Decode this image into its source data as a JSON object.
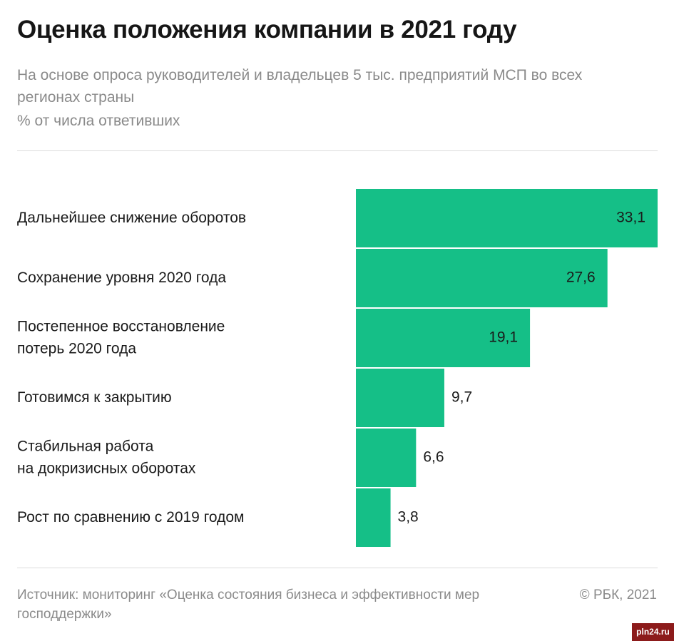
{
  "header": {
    "title": "Оценка положения компании в 2021 году",
    "subtitle": "На основе опроса руководителей и владельцев 5 тыс. предприятий МСП во всех регионах страны",
    "unit": "% от числа ответивших"
  },
  "footer": {
    "source": "Источник: мониторинг «Оценка состояния бизнеса и эффективности мер господдержки»",
    "copyright": "© РБК, 2021",
    "watermark": "pln24.ru"
  },
  "colors": {
    "bar": "#15bf87",
    "label": "#1a1a1a"
  },
  "chart_data": {
    "type": "bar",
    "orientation": "horizontal",
    "title": "Оценка положения компании в 2021 году",
    "xlabel": "",
    "ylabel": "% от числа ответивших",
    "xlim": [
      0,
      33.1
    ],
    "grid": false,
    "categories": [
      [
        "Дальнейшее снижение оборотов"
      ],
      [
        "Сохранение уровня 2020 года"
      ],
      [
        "Постепенное восстановление",
        "потерь 2020 года"
      ],
      [
        "Готовимся к закрытию"
      ],
      [
        "Стабильная работа",
        "на докризисных оборотах"
      ],
      [
        "Рост по сравнению с 2019 годом"
      ]
    ],
    "values": [
      33.1,
      27.6,
      19.1,
      9.7,
      6.6,
      3.8
    ],
    "value_labels": [
      "33,1",
      "27,6",
      "19,1",
      "9,7",
      "6,6",
      "3,8"
    ]
  }
}
